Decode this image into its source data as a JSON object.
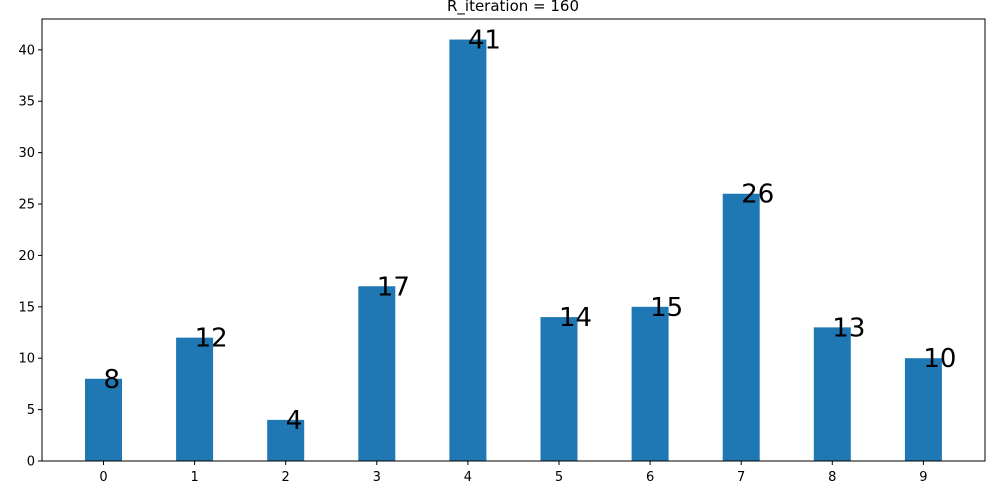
{
  "chart_data": {
    "type": "bar",
    "title": "R_iteration = 160",
    "xlabel": "",
    "ylabel": "",
    "categories": [
      "0",
      "1",
      "2",
      "3",
      "4",
      "5",
      "6",
      "7",
      "8",
      "9"
    ],
    "values": [
      8,
      12,
      4,
      17,
      41,
      14,
      15,
      26,
      13,
      10
    ],
    "data_labels": [
      "8",
      "12",
      "4",
      "17",
      "41",
      "14",
      "15",
      "26",
      "13",
      "10"
    ],
    "ylim": [
      0,
      43
    ],
    "yticks": [
      0,
      5,
      10,
      15,
      20,
      25,
      30,
      35,
      40
    ],
    "grid": false,
    "bar_color": "#1f77b4"
  }
}
